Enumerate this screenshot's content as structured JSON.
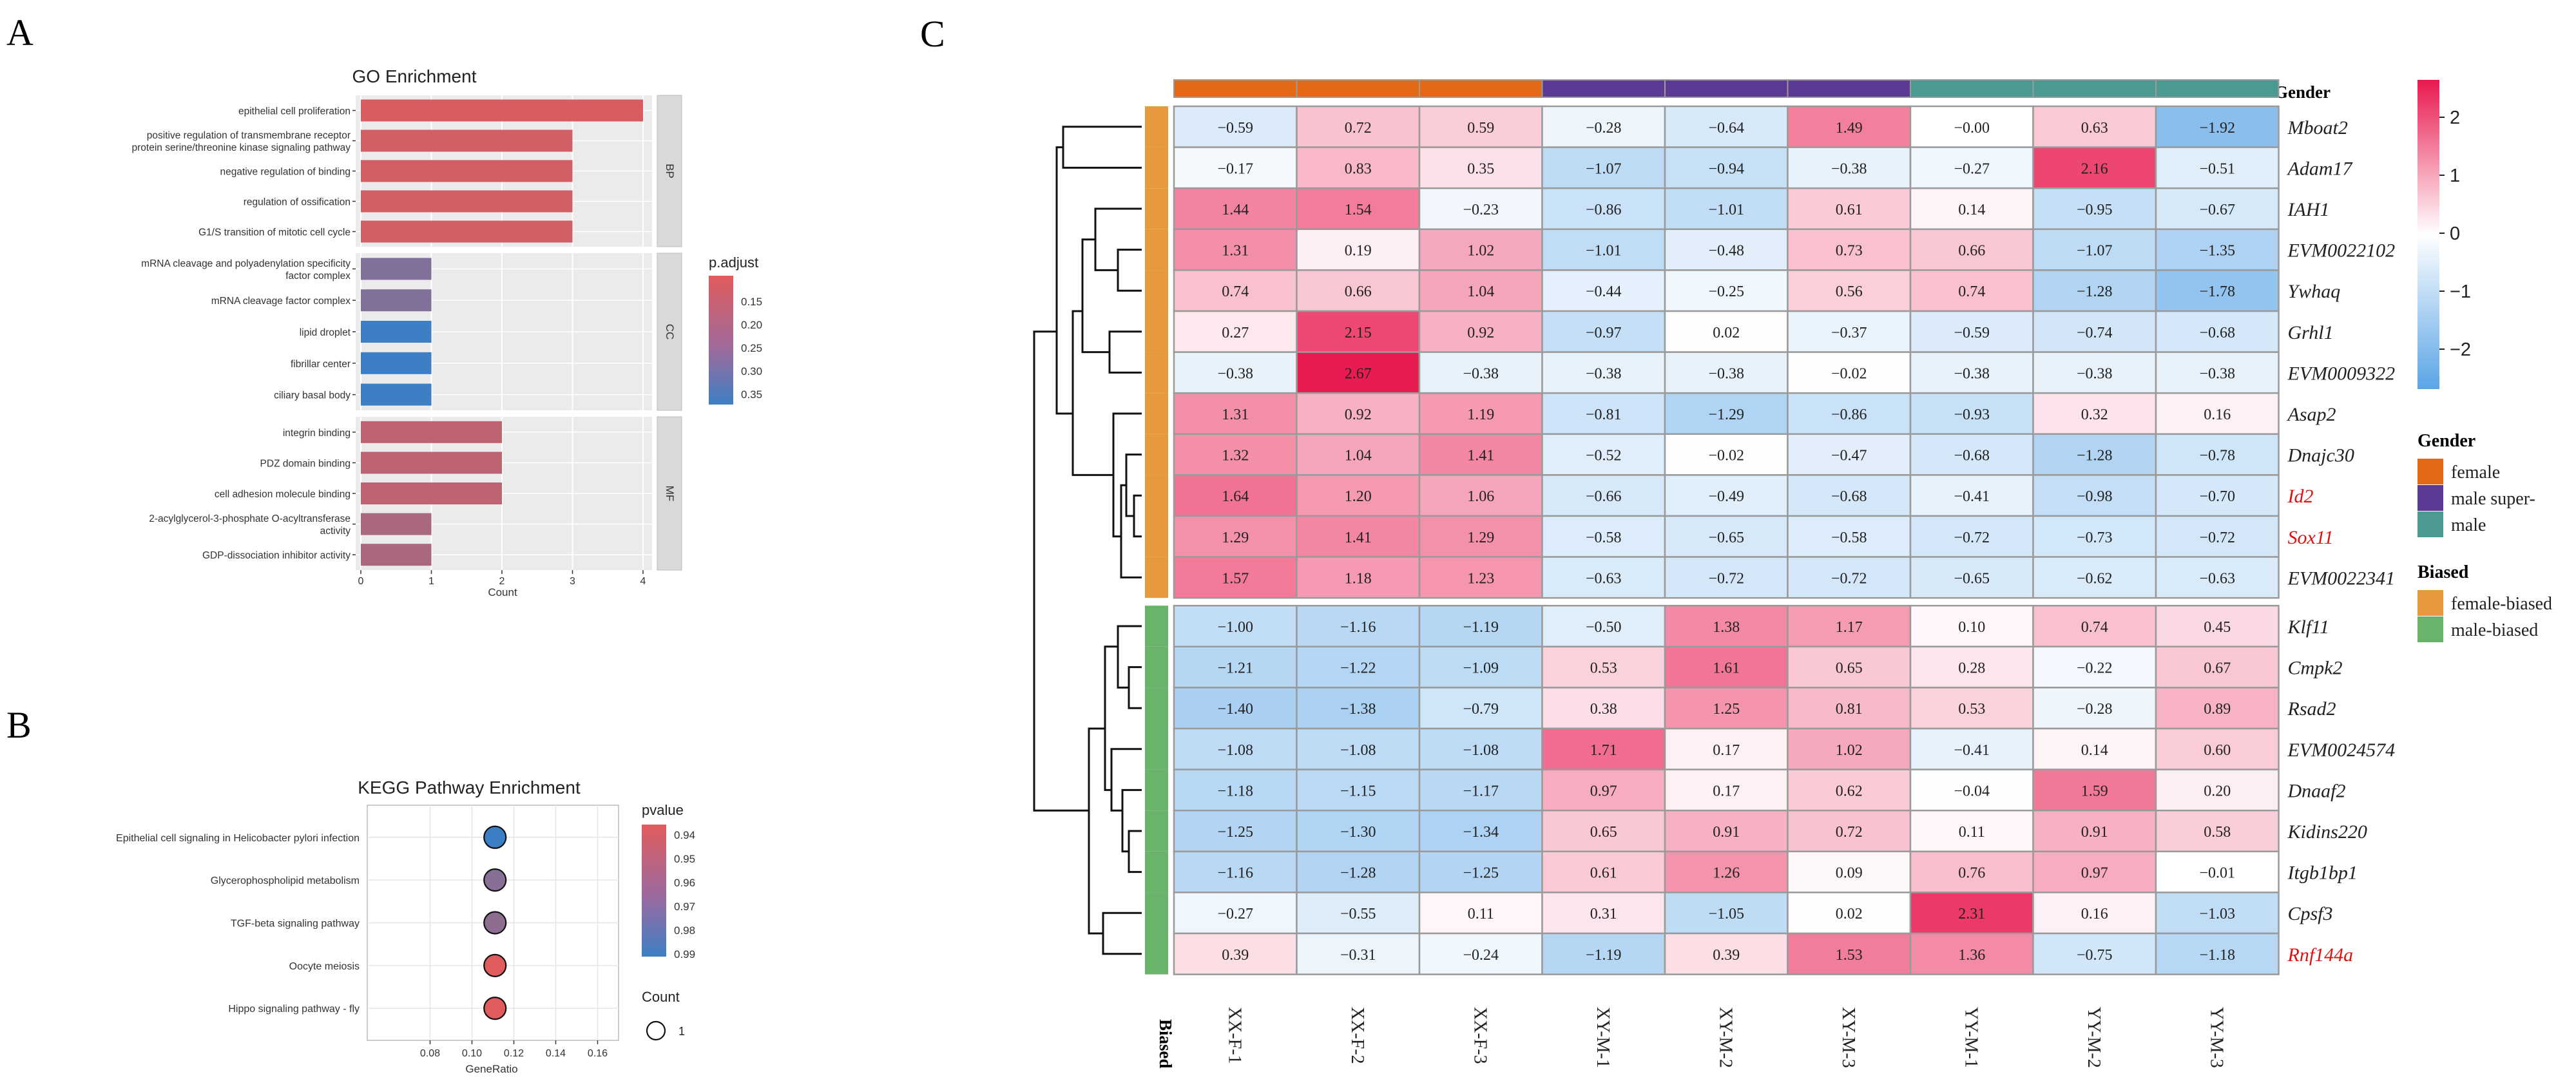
{
  "panels": {
    "a_label": "A",
    "b_label": "B",
    "c_label": "C"
  },
  "chart_data": [
    {
      "type": "bar",
      "title": "GO Enrichment",
      "xlabel": "Count",
      "ylabel": "",
      "xlim": [
        0,
        4.2
      ],
      "xticks": [
        "0",
        "1",
        "2",
        "3",
        "4"
      ],
      "legend": {
        "title": "p.adjust",
        "ticks": [
          "0.15",
          "0.20",
          "0.25",
          "0.30",
          "0.35"
        ],
        "position": "right"
      },
      "colors": {
        "low": "#e05c5c",
        "high": "#3d7fc4"
      },
      "groups": [
        {
          "name": "BP",
          "bars": [
            {
              "label": "epithelial cell proliferation",
              "lines": [
                "epithelial cell proliferation"
              ],
              "count": 4,
              "padj": 0.13
            },
            {
              "label": "positive regulation of transmembrane receptor protein serine/threonine kinase signaling pathway",
              "lines": [
                "positive regulation of transmembrane receptor",
                "protein serine/threonine kinase signaling pathway"
              ],
              "count": 3,
              "padj": 0.14
            },
            {
              "label": "negative regulation of binding",
              "lines": [
                "negative regulation of binding"
              ],
              "count": 3,
              "padj": 0.14
            },
            {
              "label": "regulation of ossification",
              "lines": [
                "regulation of ossification"
              ],
              "count": 3,
              "padj": 0.14
            },
            {
              "label": "G1/S transition of mitotic cell cycle",
              "lines": [
                "G1/S transition of mitotic cell cycle"
              ],
              "count": 3,
              "padj": 0.14
            }
          ]
        },
        {
          "name": "CC",
          "bars": [
            {
              "label": "mRNA cleavage and polyadenylation specificity factor complex",
              "lines": [
                "mRNA cleavage and polyadenylation specificity",
                "factor complex"
              ],
              "count": 1,
              "padj": 0.26
            },
            {
              "label": "mRNA cleavage factor complex",
              "lines": [
                "mRNA cleavage factor complex"
              ],
              "count": 1,
              "padj": 0.26
            },
            {
              "label": "lipid droplet",
              "lines": [
                "lipid droplet"
              ],
              "count": 1,
              "padj": 0.36
            },
            {
              "label": "fibrillar center",
              "lines": [
                "fibrillar center"
              ],
              "count": 1,
              "padj": 0.36
            },
            {
              "label": "ciliary basal body",
              "lines": [
                "ciliary basal body"
              ],
              "count": 1,
              "padj": 0.36
            }
          ]
        },
        {
          "name": "MF",
          "bars": [
            {
              "label": "integrin binding",
              "lines": [
                "integrin binding"
              ],
              "count": 2,
              "padj": 0.17
            },
            {
              "label": "PDZ domain binding",
              "lines": [
                "PDZ domain binding"
              ],
              "count": 2,
              "padj": 0.17
            },
            {
              "label": "cell adhesion molecule binding",
              "lines": [
                "cell adhesion molecule binding"
              ],
              "count": 2,
              "padj": 0.17
            },
            {
              "label": "2-acylglycerol-3-phosphate O-acyltransferase activity",
              "lines": [
                "2-acylglycerol-3-phosphate O-acyltransferase",
                "activity"
              ],
              "count": 1,
              "padj": 0.2
            },
            {
              "label": "GDP-dissociation inhibitor activity",
              "lines": [
                "GDP-dissociation inhibitor activity"
              ],
              "count": 1,
              "padj": 0.2
            }
          ]
        }
      ]
    },
    {
      "type": "scatter",
      "title": "KEGG Pathway Enrichment",
      "xlabel": "GeneRatio",
      "ylabel": "",
      "xlim": [
        0.05,
        0.17
      ],
      "xticks": [
        0.08,
        0.1,
        0.12,
        0.14,
        0.16
      ],
      "xtick_labels": [
        "0.08",
        "0.10",
        "0.12",
        "0.14",
        "0.16"
      ],
      "legend": {
        "color_title": "pvalue",
        "color_ticks": [
          "0.94",
          "0.95",
          "0.96",
          "0.97",
          "0.98",
          "0.99"
        ],
        "size_title": "Count",
        "size_value": "1",
        "position": "right"
      },
      "points": [
        {
          "pathway": "Epithelial cell signaling in Helicobacter pylori infection",
          "generatio": 0.111,
          "pvalue": 0.995,
          "count": 1
        },
        {
          "pathway": "Glycerophospholipid metabolism",
          "generatio": 0.111,
          "pvalue": 0.97,
          "count": 1
        },
        {
          "pathway": "TGF-beta signaling pathway",
          "generatio": 0.111,
          "pvalue": 0.968,
          "count": 1
        },
        {
          "pathway": "Oocyte meiosis",
          "generatio": 0.111,
          "pvalue": 0.94,
          "count": 1
        },
        {
          "pathway": "Hippo signaling pathway - fly",
          "generatio": 0.111,
          "pvalue": 0.94,
          "count": 1
        }
      ]
    },
    {
      "type": "heatmap",
      "title": "",
      "columns": [
        "XX-F-1",
        "XX-F-2",
        "XX-F-3",
        "XY-M-1",
        "XY-M-2",
        "XY-M-3",
        "YY-M-1",
        "YY-M-2",
        "YY-M-3"
      ],
      "column_gender": [
        "female",
        "female",
        "female",
        "male super-",
        "male super-",
        "male super-",
        "male",
        "male",
        "male"
      ],
      "annotation_labels": {
        "top": "Gender",
        "left": "Biased"
      },
      "rows": [
        {
          "gene": "Mboat2",
          "highlight": false,
          "biased": "female-biased",
          "values": [
            "−0.59",
            "0.72",
            "0.59",
            "−0.28",
            "−0.64",
            "1.49",
            "−0.00",
            "0.63",
            "−1.92"
          ]
        },
        {
          "gene": "Adam17",
          "highlight": false,
          "biased": "female-biased",
          "values": [
            "−0.17",
            "0.83",
            "0.35",
            "−1.07",
            "−0.94",
            "−0.38",
            "−0.27",
            "2.16",
            "−0.51"
          ]
        },
        {
          "gene": "IAH1",
          "highlight": false,
          "biased": "female-biased",
          "values": [
            "1.44",
            "1.54",
            "−0.23",
            "−0.86",
            "−1.01",
            "0.61",
            "0.14",
            "−0.95",
            "−0.67"
          ]
        },
        {
          "gene": "EVM0022102",
          "highlight": false,
          "biased": "female-biased",
          "values": [
            "1.31",
            "0.19",
            "1.02",
            "−1.01",
            "−0.48",
            "0.73",
            "0.66",
            "−1.07",
            "−1.35"
          ]
        },
        {
          "gene": "Ywhaq",
          "highlight": false,
          "biased": "female-biased",
          "values": [
            "0.74",
            "0.66",
            "1.04",
            "−0.44",
            "−0.25",
            "0.56",
            "0.74",
            "−1.28",
            "−1.78"
          ]
        },
        {
          "gene": "Grhl1",
          "highlight": false,
          "biased": "female-biased",
          "values": [
            "0.27",
            "2.15",
            "0.92",
            "−0.97",
            "0.02",
            "−0.37",
            "−0.59",
            "−0.74",
            "−0.68"
          ]
        },
        {
          "gene": "EVM0009322",
          "highlight": false,
          "biased": "female-biased",
          "values": [
            "−0.38",
            "2.67",
            "−0.38",
            "−0.38",
            "−0.38",
            "−0.02",
            "−0.38",
            "−0.38",
            "−0.38"
          ]
        },
        {
          "gene": "Asap2",
          "highlight": false,
          "biased": "female-biased",
          "values": [
            "1.31",
            "0.92",
            "1.19",
            "−0.81",
            "−1.29",
            "−0.86",
            "−0.93",
            "0.32",
            "0.16"
          ]
        },
        {
          "gene": "Dnajc30",
          "highlight": false,
          "biased": "female-biased",
          "values": [
            "1.32",
            "1.04",
            "1.41",
            "−0.52",
            "−0.02",
            "−0.47",
            "−0.68",
            "−1.28",
            "−0.78"
          ]
        },
        {
          "gene": "Id2",
          "highlight": true,
          "biased": "female-biased",
          "values": [
            "1.64",
            "1.20",
            "1.06",
            "−0.66",
            "−0.49",
            "−0.68",
            "−0.41",
            "−0.98",
            "−0.70"
          ]
        },
        {
          "gene": "Sox11",
          "highlight": true,
          "biased": "female-biased",
          "values": [
            "1.29",
            "1.41",
            "1.29",
            "−0.58",
            "−0.65",
            "−0.58",
            "−0.72",
            "−0.73",
            "−0.72"
          ]
        },
        {
          "gene": "EVM0022341",
          "highlight": false,
          "biased": "female-biased",
          "values": [
            "1.57",
            "1.18",
            "1.23",
            "−0.63",
            "−0.72",
            "−0.72",
            "−0.65",
            "−0.62",
            "−0.63"
          ]
        },
        {
          "gene": "Klf11",
          "highlight": false,
          "biased": "male-biased",
          "values": [
            "−1.00",
            "−1.16",
            "−1.19",
            "−0.50",
            "1.38",
            "1.17",
            "0.10",
            "0.74",
            "0.45"
          ]
        },
        {
          "gene": "Cmpk2",
          "highlight": false,
          "biased": "male-biased",
          "values": [
            "−1.21",
            "−1.22",
            "−1.09",
            "0.53",
            "1.61",
            "0.65",
            "0.28",
            "−0.22",
            "0.67"
          ]
        },
        {
          "gene": "Rsad2",
          "highlight": false,
          "biased": "male-biased",
          "values": [
            "−1.40",
            "−1.38",
            "−0.79",
            "0.38",
            "1.25",
            "0.81",
            "0.53",
            "−0.28",
            "0.89"
          ]
        },
        {
          "gene": "EVM0024574",
          "highlight": false,
          "biased": "male-biased",
          "values": [
            "−1.08",
            "−1.08",
            "−1.08",
            "1.71",
            "0.17",
            "1.02",
            "−0.41",
            "0.14",
            "0.60"
          ]
        },
        {
          "gene": "Dnaaf2",
          "highlight": false,
          "biased": "male-biased",
          "values": [
            "−1.18",
            "−1.15",
            "−1.17",
            "0.97",
            "0.17",
            "0.62",
            "−0.04",
            "1.59",
            "0.20"
          ]
        },
        {
          "gene": "Kidins220",
          "highlight": false,
          "biased": "male-biased",
          "values": [
            "−1.25",
            "−1.30",
            "−1.34",
            "0.65",
            "0.91",
            "0.72",
            "0.11",
            "0.91",
            "0.58"
          ]
        },
        {
          "gene": "Itgb1bp1",
          "highlight": false,
          "biased": "male-biased",
          "values": [
            "−1.16",
            "−1.28",
            "−1.25",
            "0.61",
            "1.26",
            "0.09",
            "0.76",
            "0.97",
            "−0.01"
          ]
        },
        {
          "gene": "Cpsf3",
          "highlight": false,
          "biased": "male-biased",
          "values": [
            "−0.27",
            "−0.55",
            "0.11",
            "0.31",
            "−1.05",
            "0.02",
            "2.31",
            "0.16",
            "−1.03"
          ]
        },
        {
          "gene": "Rnf144a",
          "highlight": true,
          "biased": "male-biased",
          "values": [
            "0.39",
            "−0.31",
            "−0.24",
            "−1.19",
            "0.39",
            "1.53",
            "1.36",
            "−0.75",
            "−1.18"
          ]
        }
      ],
      "color_scale": {
        "min": -2.7,
        "max": 2.7,
        "low": "#5aa5e6",
        "mid": "#ffffff",
        "high": "#e8194e",
        "ticks": [
          "2",
          "1",
          "0",
          "−1",
          "−2"
        ]
      },
      "legend": {
        "gender_title": "Gender",
        "gender_items": [
          {
            "label": "female",
            "color": "#e26a16"
          },
          {
            "label": "male super-",
            "color": "#5b3a96"
          },
          {
            "label": "male",
            "color": "#4b9a92"
          }
        ],
        "biased_title": "Biased",
        "biased_items": [
          {
            "label": "female-biased",
            "color": "#e69a3c"
          },
          {
            "label": "male-biased",
            "color": "#6ab36a"
          }
        ],
        "position": "right"
      }
    }
  ]
}
